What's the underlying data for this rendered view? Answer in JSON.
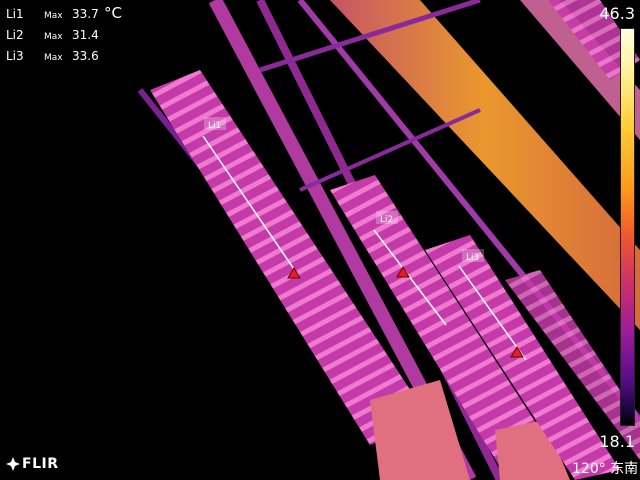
{
  "measurements": [
    {
      "label": "Li1",
      "max_label": "Max",
      "value": "33.7"
    },
    {
      "label": "Li2",
      "max_label": "Max",
      "value": "31.4"
    },
    {
      "label": "Li3",
      "max_label": "Max",
      "value": "33.6"
    }
  ],
  "unit": "°C",
  "scale": {
    "max": "46.3",
    "min": "18.1"
  },
  "logo_text": "FLIR",
  "compass": "120° 东南",
  "colors": {
    "hot": "#ffcc33",
    "warm": "#e0609a",
    "cool": "#a030c0",
    "background": "#000000",
    "marker": "#e02020"
  }
}
